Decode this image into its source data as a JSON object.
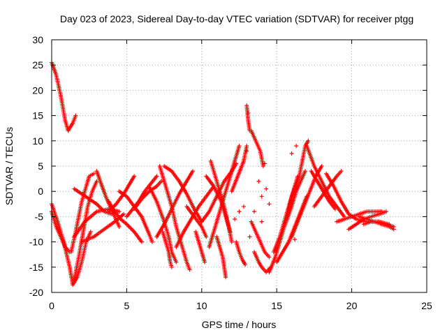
{
  "chart_data": {
    "type": "scatter",
    "title": "Day 023 of 2023, Sidereal Day-to-day VTEC variation (SDTVAR) for receiver ptgg",
    "xlabel": "GPS time / hours",
    "ylabel": "SDTVAR / TECUs",
    "xlim": [
      0,
      25
    ],
    "ylim": [
      -20,
      30
    ],
    "xticks": [
      0,
      5,
      10,
      15,
      20,
      25
    ],
    "yticks": [
      -20,
      -15,
      -10,
      -5,
      0,
      5,
      10,
      15,
      20,
      25,
      30
    ],
    "grid": true,
    "marker": "+",
    "color": "#ff0000",
    "series": [
      {
        "name": "s1",
        "points": [
          [
            0.0,
            25.5
          ],
          [
            0.3,
            23
          ],
          [
            0.6,
            19
          ],
          [
            0.9,
            14
          ],
          [
            1.1,
            12
          ],
          [
            1.4,
            13.5
          ],
          [
            1.6,
            15
          ]
        ]
      },
      {
        "name": "s2",
        "points": [
          [
            0.0,
            -2.5
          ],
          [
            0.4,
            -6
          ],
          [
            0.8,
            -10
          ],
          [
            1.2,
            -15
          ],
          [
            1.4,
            -18.5
          ],
          [
            1.7,
            -17
          ],
          [
            2.0,
            -14
          ],
          [
            2.3,
            -10
          ],
          [
            2.6,
            -8
          ]
        ]
      },
      {
        "name": "s3",
        "points": [
          [
            0.0,
            -4
          ],
          [
            0.3,
            -7
          ],
          [
            0.6,
            -9
          ],
          [
            0.9,
            -11
          ],
          [
            1.2,
            -12
          ]
        ]
      },
      {
        "name": "s4",
        "points": [
          [
            1.5,
            -17.5
          ],
          [
            1.8,
            -13
          ],
          [
            2.1,
            -8
          ],
          [
            2.4,
            -3
          ],
          [
            2.7,
            0
          ],
          [
            3.0,
            2
          ]
        ]
      },
      {
        "name": "s5",
        "points": [
          [
            1.3,
            -12
          ],
          [
            1.6,
            -8
          ],
          [
            2.0,
            -2
          ],
          [
            2.3,
            1
          ],
          [
            2.5,
            3
          ],
          [
            2.8,
            3.5
          ]
        ]
      },
      {
        "name": "s6",
        "points": [
          [
            2.0,
            -10
          ],
          [
            2.8,
            -9
          ],
          [
            3.5,
            -7.5
          ],
          [
            4.2,
            -6
          ],
          [
            4.8,
            -4.5
          ]
        ]
      },
      {
        "name": "s7",
        "points": [
          [
            1.5,
            -9
          ],
          [
            2.2,
            -6
          ],
          [
            3.0,
            -4
          ],
          [
            3.8,
            -3.5
          ],
          [
            4.5,
            -4
          ]
        ]
      },
      {
        "name": "s8",
        "points": [
          [
            1.5,
            0.5
          ],
          [
            2.0,
            -0.5
          ],
          [
            2.5,
            -1.5
          ],
          [
            3.0,
            -2.5
          ],
          [
            3.5,
            -4
          ],
          [
            4.0,
            -4.5
          ]
        ]
      },
      {
        "name": "s9",
        "points": [
          [
            3.0,
            4
          ],
          [
            3.3,
            1.5
          ],
          [
            3.6,
            -1
          ],
          [
            3.9,
            -3
          ],
          [
            4.2,
            -5
          ],
          [
            4.5,
            -7
          ]
        ]
      },
      {
        "name": "s10",
        "points": [
          [
            3.8,
            -2
          ],
          [
            4.2,
            -4
          ],
          [
            4.6,
            -5.5
          ],
          [
            5.0,
            -6.5
          ],
          [
            5.5,
            -8
          ],
          [
            6.0,
            -10
          ]
        ]
      },
      {
        "name": "s11",
        "points": [
          [
            3.8,
            -4
          ],
          [
            4.3,
            -2.5
          ],
          [
            4.8,
            -0.5
          ],
          [
            5.2,
            1.5
          ],
          [
            5.5,
            3
          ]
        ]
      },
      {
        "name": "s12",
        "points": [
          [
            5.0,
            -5
          ],
          [
            5.4,
            -3.5
          ],
          [
            5.8,
            -2
          ],
          [
            6.2,
            0
          ],
          [
            6.6,
            1.5
          ],
          [
            7.0,
            3
          ]
        ]
      },
      {
        "name": "s13",
        "points": [
          [
            4.5,
            0
          ],
          [
            5.0,
            -1
          ],
          [
            5.5,
            -3
          ],
          [
            6.0,
            -5
          ],
          [
            6.5,
            -8.5
          ],
          [
            6.7,
            -10
          ]
        ]
      },
      {
        "name": "s14",
        "points": [
          [
            5.5,
            -3.5
          ],
          [
            6.0,
            -1.5
          ],
          [
            6.5,
            0
          ],
          [
            7.0,
            1
          ],
          [
            7.3,
            2
          ]
        ]
      },
      {
        "name": "s15",
        "points": [
          [
            6.5,
            1
          ],
          [
            7.0,
            -2
          ],
          [
            7.5,
            -6
          ],
          [
            7.8,
            -9
          ],
          [
            8.0,
            -12
          ],
          [
            8.3,
            -14
          ]
        ]
      },
      {
        "name": "s16",
        "points": [
          [
            7.2,
            5
          ],
          [
            7.6,
            1
          ],
          [
            8.0,
            -3
          ],
          [
            8.3,
            -7
          ],
          [
            8.7,
            -11
          ],
          [
            9.0,
            -14
          ],
          [
            9.2,
            -15.5
          ]
        ]
      },
      {
        "name": "s17",
        "points": [
          [
            7.4,
            -8
          ],
          [
            7.6,
            -10
          ],
          [
            7.8,
            -12
          ],
          [
            7.9,
            -14
          ],
          [
            8.0,
            -15
          ]
        ]
      },
      {
        "name": "s18",
        "points": [
          [
            7.0,
            -9
          ],
          [
            7.5,
            -6.5
          ],
          [
            8.0,
            -3.5
          ],
          [
            8.5,
            -0.5
          ],
          [
            9.0,
            2
          ],
          [
            9.4,
            4
          ]
        ]
      },
      {
        "name": "s19",
        "points": [
          [
            7.5,
            5
          ],
          [
            8.0,
            4
          ],
          [
            8.5,
            2
          ],
          [
            9.0,
            -0.5
          ],
          [
            9.5,
            -3.5
          ],
          [
            10.0,
            -6
          ]
        ]
      },
      {
        "name": "s20",
        "points": [
          [
            8.3,
            -11
          ],
          [
            8.8,
            -8
          ],
          [
            9.3,
            -5.5
          ],
          [
            9.8,
            -3
          ],
          [
            10.3,
            -1
          ],
          [
            10.8,
            1
          ]
        ]
      },
      {
        "name": "s21",
        "points": [
          [
            9.0,
            -3
          ],
          [
            9.5,
            -5
          ],
          [
            10.0,
            -7
          ],
          [
            10.3,
            -9
          ]
        ]
      },
      {
        "name": "s22",
        "points": [
          [
            9.6,
            -8
          ],
          [
            9.8,
            -10
          ],
          [
            10.0,
            -12
          ],
          [
            10.2,
            -14
          ]
        ]
      },
      {
        "name": "s23",
        "points": [
          [
            10.0,
            -6
          ],
          [
            10.5,
            -4
          ],
          [
            11.0,
            -1
          ],
          [
            11.5,
            2
          ],
          [
            12.0,
            4
          ],
          [
            12.3,
            5.5
          ]
        ]
      },
      {
        "name": "s24",
        "points": [
          [
            10.5,
            -11
          ],
          [
            10.9,
            -7
          ],
          [
            11.3,
            -3
          ],
          [
            11.7,
            1
          ],
          [
            12.1,
            5
          ],
          [
            12.5,
            9
          ]
        ]
      },
      {
        "name": "s25",
        "points": [
          [
            10.6,
            6
          ],
          [
            10.9,
            3
          ],
          [
            11.2,
            0
          ],
          [
            11.5,
            -3
          ],
          [
            11.8,
            -7
          ],
          [
            12.0,
            -10
          ]
        ]
      },
      {
        "name": "s26",
        "points": [
          [
            10.3,
            3
          ],
          [
            10.8,
            1
          ],
          [
            11.3,
            -2
          ],
          [
            11.6,
            -5
          ],
          [
            11.9,
            -8
          ]
        ]
      },
      {
        "name": "s27",
        "points": [
          [
            11.0,
            -9
          ],
          [
            11.2,
            -11
          ],
          [
            11.4,
            -13
          ],
          [
            11.5,
            -15
          ],
          [
            11.6,
            -17
          ]
        ]
      },
      {
        "name": "s28",
        "points": [
          [
            12.0,
            0
          ],
          [
            12.4,
            3
          ],
          [
            12.8,
            6
          ],
          [
            13.0,
            9
          ]
        ]
      },
      {
        "name": "s29",
        "points": [
          [
            12.3,
            -10
          ],
          [
            12.5,
            -12
          ],
          [
            12.7,
            -13.5
          ],
          [
            12.9,
            -14.5
          ]
        ]
      },
      {
        "name": "s30",
        "points": [
          [
            13.0,
            17
          ],
          [
            13.1,
            14
          ],
          [
            13.2,
            12
          ]
        ]
      },
      {
        "name": "s31",
        "points": [
          [
            13.3,
            12
          ],
          [
            13.6,
            10
          ],
          [
            13.9,
            8
          ],
          [
            14.1,
            5
          ]
        ]
      },
      {
        "name": "s32",
        "points": [
          [
            13.3,
            -6
          ],
          [
            13.6,
            -8
          ],
          [
            13.9,
            -10
          ],
          [
            14.2,
            -12
          ],
          [
            14.5,
            -13
          ]
        ]
      },
      {
        "name": "s33",
        "points": [
          [
            13.5,
            -12
          ],
          [
            13.8,
            -14
          ],
          [
            14.0,
            -15
          ],
          [
            14.3,
            -16
          ],
          [
            14.6,
            -15
          ]
        ]
      },
      {
        "name": "s34",
        "points": [
          [
            14.8,
            -12
          ],
          [
            15.2,
            -9
          ],
          [
            15.5,
            -6
          ],
          [
            15.8,
            -3
          ],
          [
            16.1,
            0
          ],
          [
            16.4,
            3
          ]
        ]
      },
      {
        "name": "s35",
        "points": [
          [
            14.5,
            -16
          ],
          [
            14.9,
            -13
          ],
          [
            15.3,
            -9
          ],
          [
            15.7,
            -5
          ],
          [
            16.0,
            -1
          ],
          [
            16.5,
            3
          ]
        ]
      },
      {
        "name": "s36",
        "points": [
          [
            15.0,
            -14
          ],
          [
            15.4,
            -12
          ],
          [
            15.8,
            -10
          ],
          [
            16.2,
            -7
          ],
          [
            16.6,
            -4
          ],
          [
            17.0,
            -1
          ]
        ]
      },
      {
        "name": "s37",
        "points": [
          [
            15.5,
            -7
          ],
          [
            16.0,
            -3
          ],
          [
            16.3,
            0
          ],
          [
            16.6,
            2
          ],
          [
            16.9,
            4
          ]
        ]
      },
      {
        "name": "s38",
        "points": [
          [
            16.0,
            -9
          ],
          [
            16.4,
            -6
          ],
          [
            16.8,
            -3
          ],
          [
            17.2,
            0
          ],
          [
            17.6,
            3
          ],
          [
            18.0,
            5
          ]
        ]
      },
      {
        "name": "s39",
        "points": [
          [
            16.5,
            3
          ],
          [
            16.7,
            6
          ],
          [
            16.9,
            9
          ],
          [
            17.1,
            10
          ]
        ]
      },
      {
        "name": "s40",
        "points": [
          [
            17.0,
            9
          ],
          [
            17.5,
            5
          ],
          [
            18.0,
            2
          ],
          [
            18.5,
            -1
          ],
          [
            19.0,
            -3
          ],
          [
            19.5,
            -5
          ]
        ]
      },
      {
        "name": "s41",
        "points": [
          [
            17.3,
            4
          ],
          [
            17.7,
            2
          ],
          [
            18.1,
            0
          ],
          [
            18.5,
            -2
          ],
          [
            18.9,
            -3.5
          ]
        ]
      },
      {
        "name": "s42",
        "points": [
          [
            17.5,
            -3
          ],
          [
            18.0,
            -1
          ],
          [
            18.5,
            1
          ],
          [
            19.0,
            3
          ],
          [
            19.3,
            4
          ]
        ]
      },
      {
        "name": "s43",
        "points": [
          [
            18.3,
            3.5
          ],
          [
            18.8,
            1
          ],
          [
            19.3,
            -2
          ],
          [
            19.8,
            -4.5
          ],
          [
            20.3,
            -5.5
          ],
          [
            21.0,
            -6
          ],
          [
            21.8,
            -6
          ],
          [
            22.5,
            -6.5
          ]
        ]
      },
      {
        "name": "s44",
        "points": [
          [
            19.8,
            -7.5
          ],
          [
            20.3,
            -6.5
          ],
          [
            20.8,
            -5.5
          ],
          [
            21.3,
            -5
          ],
          [
            21.8,
            -4.5
          ],
          [
            22.3,
            -4
          ]
        ]
      },
      {
        "name": "s45",
        "points": [
          [
            19.0,
            -6
          ],
          [
            19.5,
            -5.5
          ],
          [
            20.0,
            -5
          ],
          [
            20.5,
            -4.5
          ],
          [
            21.0,
            -4
          ],
          [
            21.5,
            -4
          ],
          [
            22.0,
            -4
          ]
        ]
      },
      {
        "name": "s46",
        "points": [
          [
            20.5,
            -5
          ],
          [
            21.0,
            -5.5
          ],
          [
            21.5,
            -6
          ],
          [
            22.0,
            -6.5
          ],
          [
            22.5,
            -7
          ],
          [
            22.8,
            -7.5
          ]
        ]
      },
      {
        "name": "s47",
        "points": [
          [
            20.8,
            -6.5
          ],
          [
            21.3,
            -6
          ],
          [
            21.8,
            -6
          ],
          [
            22.3,
            -6.5
          ],
          [
            22.8,
            -7
          ]
        ]
      }
    ],
    "scattered_points": [
      [
        13.5,
        -4
      ],
      [
        14.0,
        -6
      ],
      [
        13.2,
        -9
      ],
      [
        13.8,
        2
      ],
      [
        14.3,
        0.5
      ],
      [
        13.0,
        8
      ],
      [
        14.2,
        5.5
      ],
      [
        16.2,
        -9.5
      ],
      [
        12.5,
        -4
      ],
      [
        12.8,
        -3
      ],
      [
        12.2,
        -5.5
      ],
      [
        14.0,
        -1
      ],
      [
        14.5,
        -2.5
      ],
      [
        13.1,
        15.5
      ],
      [
        16.0,
        7.5
      ],
      [
        16.3,
        9
      ]
    ]
  }
}
